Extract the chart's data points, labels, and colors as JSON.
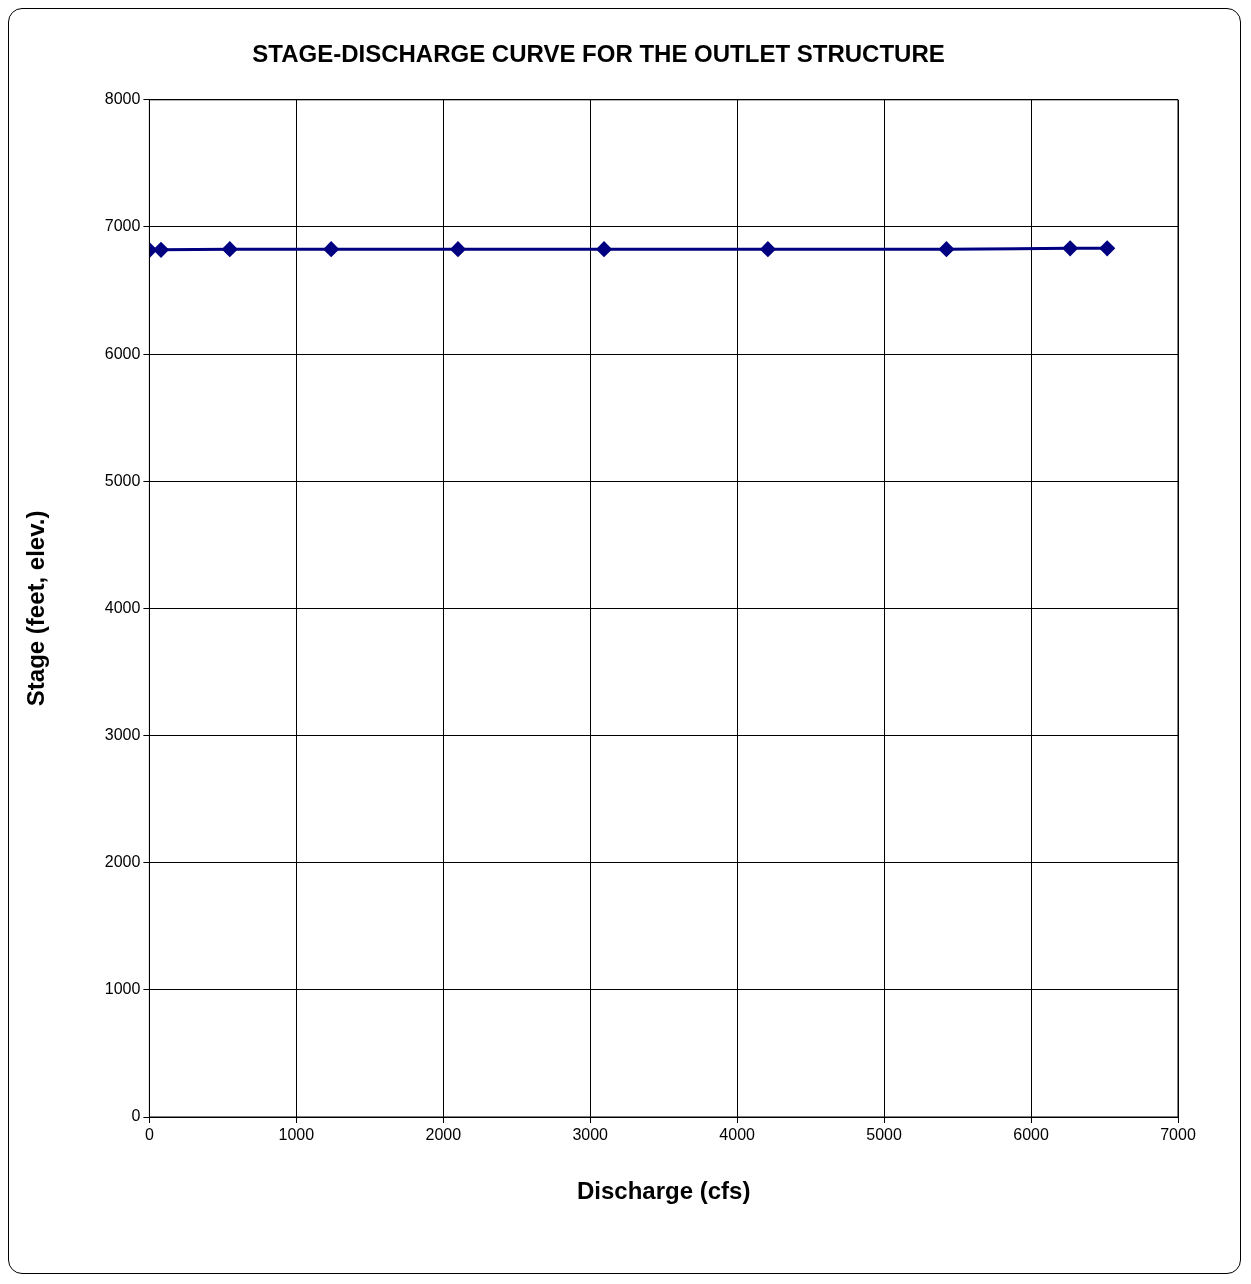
{
  "chart_data": {
    "type": "line",
    "title": "STAGE-DISCHARGE CURVE FOR THE OUTLET STRUCTURE",
    "xlabel": "Discharge (cfs)",
    "ylabel": "Stage (feet, elev.)",
    "x": [
      0,
      79,
      547,
      1237,
      2100,
      3094,
      4209,
      5424,
      6266,
      6518
    ],
    "series": [
      {
        "color": "#000080",
        "values": [
          6818,
          6820,
          6825,
          6825,
          6825,
          6825,
          6825,
          6825,
          6832,
          6832
        ]
      }
    ],
    "xlim": [
      0,
      7000
    ],
    "xticks": [
      0,
      1000,
      2000,
      3000,
      4000,
      5000,
      6000,
      7000
    ],
    "ylim": [
      0,
      8000
    ],
    "yticks": [
      0,
      1000,
      2000,
      3000,
      4000,
      5000,
      6000,
      7000,
      8000
    ],
    "grid": true,
    "legend": false,
    "marker": "diamond",
    "line_style": "solid"
  }
}
